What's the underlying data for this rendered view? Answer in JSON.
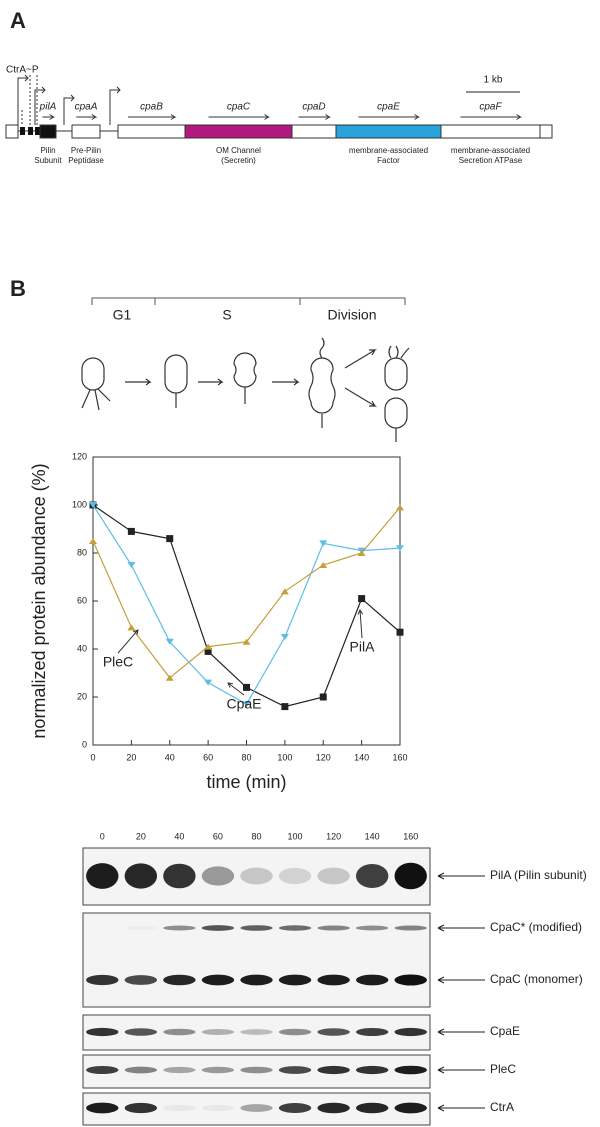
{
  "panel_a": {
    "label": "A",
    "promoter": "CtrA~P",
    "scale": "1 kb",
    "genes": [
      {
        "name": "pilA",
        "description": [
          "Pilin",
          "Subunit"
        ]
      },
      {
        "name": "cpaA",
        "description": [
          "Pre-Pilin",
          "Peptidase"
        ]
      },
      {
        "name": "cpaB"
      },
      {
        "name": "cpaC",
        "description": [
          "OM Channel",
          "(Secretin)"
        ]
      },
      {
        "name": "cpaD"
      },
      {
        "name": "cpaE",
        "description": [
          "membrane-associated",
          "Factor"
        ]
      },
      {
        "name": "cpaF",
        "description": [
          "membrane-associated",
          "Secretion ATPase"
        ]
      }
    ]
  },
  "panel_b": {
    "label": "B",
    "stages": [
      "G1",
      "S",
      "Division"
    ]
  },
  "chart_data": {
    "type": "line",
    "x_label": "time (min)",
    "y_label": "normalized protein abundance (%)",
    "x": [
      0,
      20,
      40,
      60,
      80,
      100,
      120,
      140,
      160
    ],
    "xlim": [
      0,
      160
    ],
    "xticks": [
      0,
      20,
      40,
      60,
      80,
      100,
      120,
      140,
      160
    ],
    "ylim": [
      0,
      120
    ],
    "yticks": [
      0,
      20,
      40,
      60,
      80,
      100,
      120
    ],
    "series": [
      {
        "name": "PilA",
        "color": "#222222",
        "marker": "square",
        "values": [
          100,
          89,
          86,
          39,
          24,
          16,
          20,
          61,
          47
        ]
      },
      {
        "name": "CpaE",
        "color": "#5bbde8",
        "marker": "triangle-down",
        "values": [
          100,
          75,
          43,
          26,
          17,
          45,
          84,
          81,
          82
        ]
      },
      {
        "name": "PleC",
        "color": "#c4a03a",
        "marker": "triangle-up",
        "values": [
          85,
          49,
          28,
          41,
          43,
          64,
          75,
          80,
          99
        ]
      }
    ]
  },
  "blot": {
    "lanes": [
      "0",
      "20",
      "40",
      "60",
      "80",
      "100",
      "120",
      "140",
      "160"
    ],
    "panels": [
      {
        "labels": [
          "PilA (Pilin subunit)"
        ]
      },
      {
        "labels": [
          "CpaC* (modified)",
          "CpaC (monomer)"
        ]
      },
      {
        "labels": [
          "CpaE"
        ]
      },
      {
        "labels": [
          "PleC"
        ]
      },
      {
        "labels": [
          "CtrA"
        ]
      }
    ]
  }
}
